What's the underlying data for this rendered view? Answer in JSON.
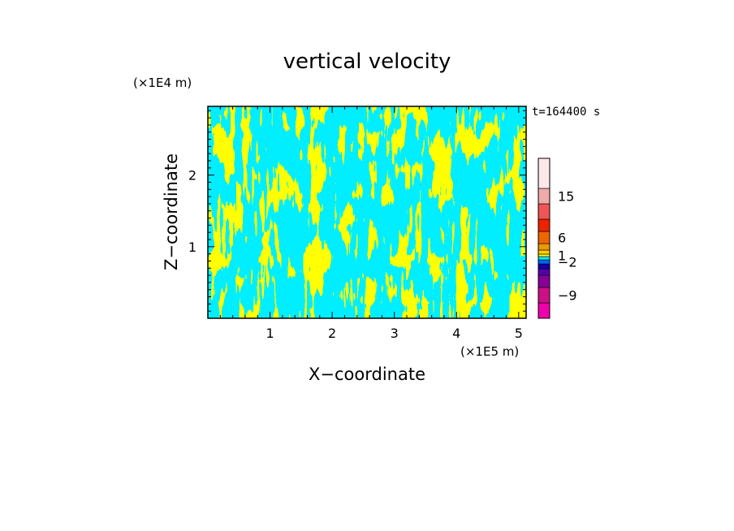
{
  "chart_data": {
    "type": "heatmap",
    "title": "vertical velocity",
    "xlabel": "X−coordinate",
    "ylabel": "Z−coordinate",
    "x_unit": "(×1E5 m)",
    "y_unit": "(×1E4 m)",
    "time_label": "t=164400 s",
    "xlim": [
      0,
      5.12
    ],
    "ylim": [
      0,
      2.96
    ],
    "x_ticks": [
      1,
      2,
      3,
      4,
      5
    ],
    "y_ticks": [
      1,
      2
    ],
    "x_tick_labels": [
      "1",
      "2",
      "3",
      "4",
      "5"
    ],
    "y_tick_labels": [
      "1",
      "2"
    ],
    "positive_color": "#ffff00",
    "negative_color": "#00eeff",
    "colorbar": {
      "colors": [
        "#ee00aa",
        "#cc1188",
        "#880099",
        "#5500aa",
        "#1100aa",
        "#0066ff",
        "#00eeff",
        "#ffff00",
        "#ffcc00",
        "#ee9900",
        "#ee6600",
        "#ee2200",
        "#ee5555",
        "#f0aaaa",
        "#fde8e8"
      ],
      "labels": [
        "−9",
        "−2",
        "1",
        "6",
        "15"
      ],
      "label_values": [
        -9,
        -2,
        1,
        6,
        15
      ]
    }
  }
}
